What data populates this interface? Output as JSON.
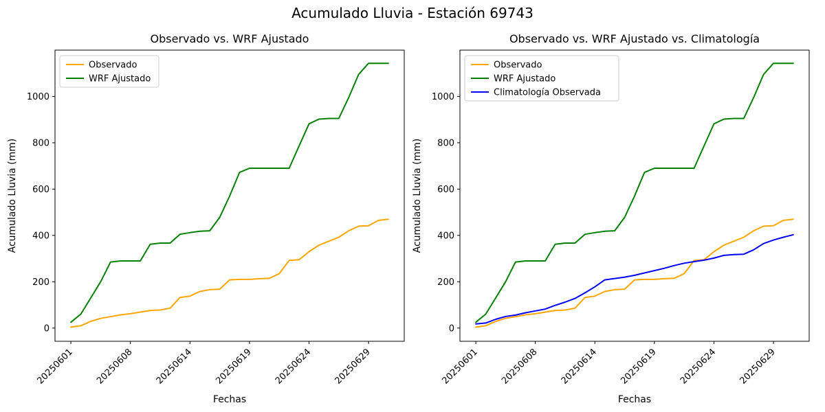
{
  "figure": {
    "suptitle": "Acumulado Lluvia - Estación 69743",
    "background": "#ffffff"
  },
  "colors": {
    "observado": "#FFA500",
    "wrf_ajustado": "#008000",
    "climatologia": "#0000FF",
    "axes": "#000000",
    "legend_border": "#cccccc"
  },
  "chart_data": [
    {
      "type": "line",
      "title": "Observado vs. WRF Ajustado",
      "xlabel": "Fechas",
      "ylabel": "Acumulado Lluvia (mm)",
      "grid": false,
      "legend_position": "upper left",
      "n_points": 33,
      "xlim": [
        -1.6,
        33.6
      ],
      "ylim": [
        -57,
        1200
      ],
      "yticks": [
        0,
        200,
        400,
        600,
        800,
        1000
      ],
      "x_tick_positions": [
        0,
        6,
        12,
        18,
        24,
        30
      ],
      "x_tick_labels": [
        "20250601",
        "20250608",
        "20250614",
        "20250619",
        "20250624",
        "20250629"
      ],
      "x_tick_rotation": 45,
      "series": [
        {
          "name": "Observado",
          "color": "#FFA500",
          "values": [
            4,
            10,
            29,
            42,
            49,
            57,
            62,
            69,
            76,
            78,
            86,
            132,
            138,
            158,
            166,
            168,
            208,
            210,
            210,
            213,
            215,
            235,
            292,
            295,
            330,
            358,
            375,
            392,
            420,
            440,
            442,
            465,
            470
          ]
        },
        {
          "name": "WRF Ajustado",
          "color": "#008000",
          "values": [
            25,
            60,
            130,
            200,
            285,
            290,
            290,
            290,
            362,
            367,
            367,
            405,
            412,
            418,
            420,
            478,
            570,
            672,
            690,
            690,
            690,
            690,
            690,
            786,
            882,
            902,
            905,
            905,
            995,
            1095,
            1143,
            1143,
            1143
          ]
        }
      ]
    },
    {
      "type": "line",
      "title": "Observado vs. WRF Ajustado vs. Climatología",
      "xlabel": "Fechas",
      "ylabel": "Acumulado Lluvia (mm)",
      "grid": false,
      "legend_position": "upper left",
      "n_points": 33,
      "xlim": [
        -1.6,
        33.6
      ],
      "ylim": [
        -57,
        1200
      ],
      "yticks": [
        0,
        200,
        400,
        600,
        800,
        1000
      ],
      "x_tick_positions": [
        0,
        6,
        12,
        18,
        24,
        30
      ],
      "x_tick_labels": [
        "20250601",
        "20250608",
        "20250614",
        "20250619",
        "20250624",
        "20250629"
      ],
      "x_tick_rotation": 45,
      "series": [
        {
          "name": "Observado",
          "color": "#FFA500",
          "values": [
            4,
            10,
            29,
            42,
            49,
            57,
            62,
            69,
            76,
            78,
            86,
            132,
            138,
            158,
            166,
            168,
            208,
            210,
            210,
            213,
            215,
            235,
            292,
            295,
            330,
            358,
            375,
            392,
            420,
            440,
            442,
            465,
            470
          ]
        },
        {
          "name": "WRF Ajustado",
          "color": "#008000",
          "values": [
            25,
            60,
            130,
            200,
            285,
            290,
            290,
            290,
            362,
            367,
            367,
            405,
            412,
            418,
            420,
            478,
            570,
            672,
            690,
            690,
            690,
            690,
            690,
            786,
            882,
            902,
            905,
            905,
            995,
            1095,
            1143,
            1143,
            1143
          ]
        },
        {
          "name": "Climatología Observada",
          "color": "#0000FF",
          "values": [
            18,
            22,
            38,
            50,
            56,
            66,
            74,
            82,
            98,
            112,
            128,
            152,
            178,
            208,
            214,
            220,
            228,
            238,
            248,
            258,
            270,
            280,
            287,
            293,
            302,
            314,
            317,
            319,
            338,
            365,
            380,
            392,
            403
          ]
        }
      ]
    }
  ]
}
